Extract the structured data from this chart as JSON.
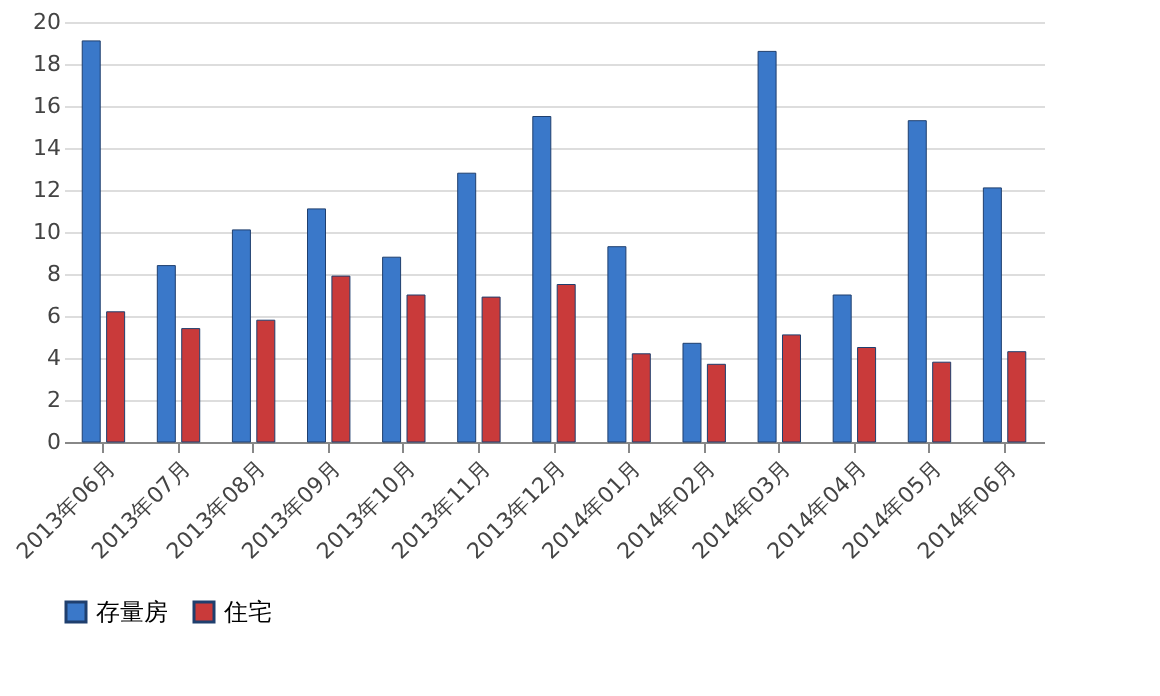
{
  "chart_data": {
    "type": "bar",
    "categories": [
      "2013年06月",
      "2013年07月",
      "2013年08月",
      "2013年09月",
      "2013年10月",
      "2013年11月",
      "2013年12月",
      "2014年01月",
      "2014年02月",
      "2014年03月",
      "2014年04月",
      "2014年05月",
      "2014年06月"
    ],
    "series": [
      {
        "name": "存量房",
        "color": "#3a78c9",
        "values": [
          19.1,
          8.4,
          10.1,
          11.1,
          8.8,
          12.8,
          15.5,
          9.3,
          4.7,
          18.6,
          7.0,
          15.3,
          12.1
        ]
      },
      {
        "name": "住宅",
        "color": "#c93a3a",
        "values": [
          6.2,
          5.4,
          5.8,
          7.9,
          7.0,
          6.9,
          7.5,
          4.2,
          3.7,
          5.1,
          4.5,
          3.8,
          4.3
        ]
      }
    ],
    "ylim": [
      0,
      20
    ],
    "yticks": [
      0,
      2,
      4,
      6,
      8,
      10,
      12,
      14,
      16,
      18,
      20
    ],
    "grid": "y",
    "legend": "bottom"
  }
}
